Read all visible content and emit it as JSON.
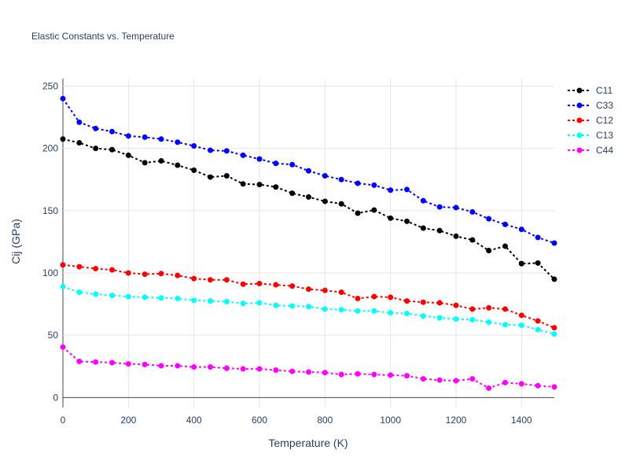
{
  "chart_data": {
    "type": "line",
    "title": "Elastic Constants vs. Temperature",
    "xlabel": "Temperature (K)",
    "ylabel": "Cij (GPa)",
    "xlim": [
      0,
      1500
    ],
    "ylim": [
      -8,
      256
    ],
    "xticks": [
      0,
      200,
      400,
      600,
      800,
      1000,
      1200,
      1400
    ],
    "yticks": [
      0,
      50,
      100,
      150,
      200,
      250
    ],
    "grid": true,
    "legend_position": "top-right",
    "x": [
      0,
      50,
      100,
      150,
      200,
      250,
      300,
      350,
      400,
      450,
      500,
      550,
      600,
      650,
      700,
      750,
      800,
      850,
      900,
      950,
      1000,
      1050,
      1100,
      1150,
      1200,
      1250,
      1300,
      1350,
      1400,
      1450,
      1500
    ],
    "series": [
      {
        "name": "C11",
        "color": "#000000",
        "values": [
          207.5,
          204.5,
          200,
          199,
          194.5,
          188.5,
          190,
          186.5,
          182.5,
          177,
          178,
          171.5,
          171,
          169,
          164,
          161,
          157.5,
          155.5,
          148,
          150.5,
          144,
          141.5,
          136,
          134,
          129.5,
          126.5,
          118,
          121.5,
          107.5,
          108,
          95
        ]
      },
      {
        "name": "C33",
        "color": "#0000ff",
        "values": [
          240,
          221,
          216,
          213.5,
          210,
          209,
          207.5,
          205,
          202,
          198.5,
          198,
          194.5,
          191.5,
          188,
          187,
          182,
          178,
          175,
          172,
          170.5,
          166.5,
          167,
          158,
          153,
          152.5,
          149,
          143.5,
          139,
          135,
          128.5,
          124
        ]
      },
      {
        "name": "C12",
        "color": "#ff0000",
        "values": [
          106.5,
          105,
          103.5,
          102.5,
          100,
          99,
          99.5,
          98,
          95.5,
          94.5,
          94.5,
          91,
          91.5,
          90.5,
          89.5,
          87,
          86,
          84.5,
          79.5,
          81,
          80.5,
          77.5,
          76.5,
          76,
          74,
          71,
          72,
          71,
          66,
          61.5,
          56
        ]
      },
      {
        "name": "C13",
        "color": "#00ffff",
        "values": [
          89,
          84.5,
          83,
          82,
          81,
          80.5,
          80,
          79.5,
          78,
          77.5,
          77,
          75.5,
          76,
          74,
          73.5,
          73,
          71,
          70.5,
          69.5,
          69.5,
          68,
          67.5,
          65.5,
          64,
          63,
          62.5,
          60.5,
          58.5,
          58,
          54.5,
          51
        ]
      },
      {
        "name": "C44",
        "color": "#ff00ff",
        "values": [
          40.5,
          29,
          28.5,
          28,
          27,
          26.5,
          25.5,
          25.5,
          24.5,
          24.5,
          23.5,
          23,
          23,
          22,
          21,
          20.5,
          20,
          18.5,
          19,
          18.5,
          18,
          17.5,
          15,
          14,
          13.5,
          15,
          7.5,
          12,
          11,
          9.5,
          8.5
        ]
      }
    ]
  }
}
